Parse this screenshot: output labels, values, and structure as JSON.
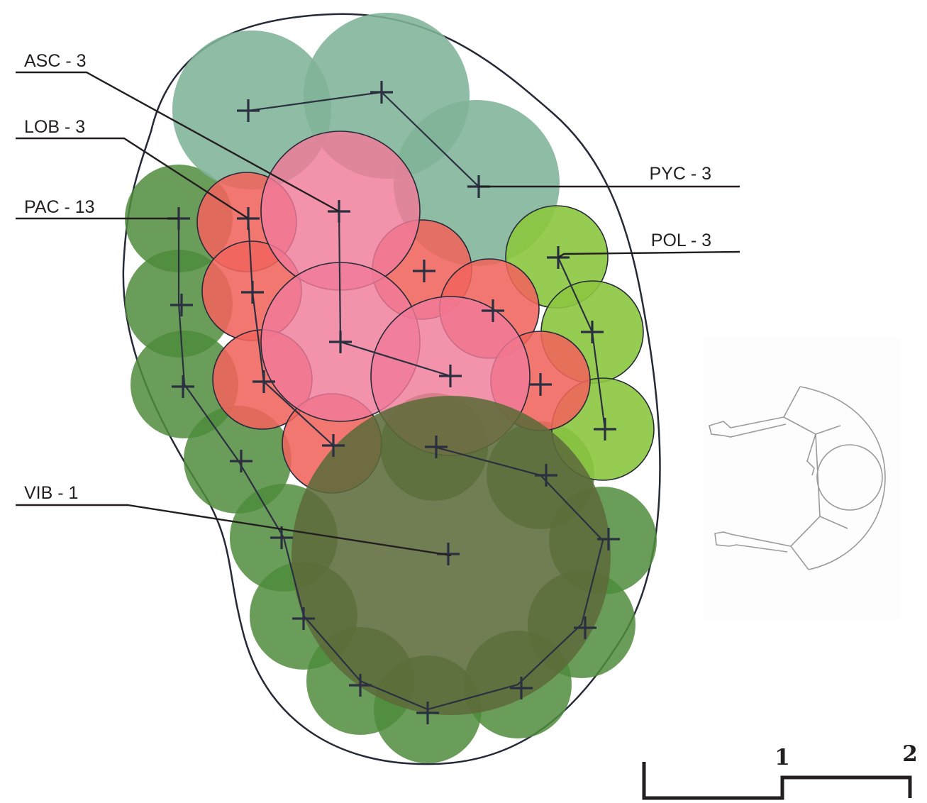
{
  "labels": {
    "asc": "ASC - 3",
    "lob": "LOB - 3",
    "pac": "PAC - 13",
    "vib": "VIB - 1",
    "pyc": "PYC - 3",
    "pol": "POL - 3"
  },
  "scale_bar": {
    "tick_1": "1",
    "tick_2": "2"
  },
  "colors": {
    "pac": "#4f8c3c",
    "pyc": "#7fb397",
    "pol": "#8cc63f",
    "lob": "#f0645c",
    "asc": "#f07a98",
    "vib": "#5d6b3a",
    "outline": "#262a38"
  },
  "icons": [
    "plant-cross-icon",
    "person-seated-figure"
  ]
}
